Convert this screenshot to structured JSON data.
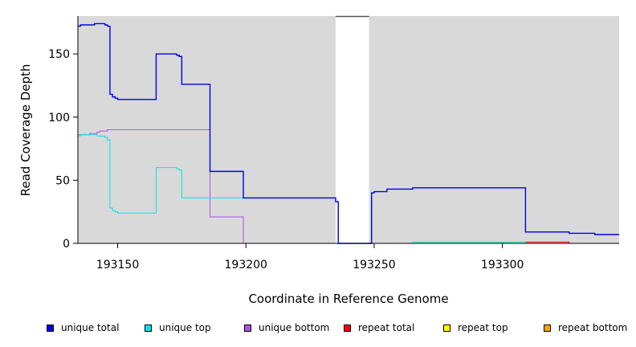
{
  "chart_data": {
    "type": "line",
    "title": "",
    "xlabel": "Coordinate in Reference Genome",
    "ylabel": "Read Coverage Depth",
    "xlim": [
      193134.5,
      193345.5
    ],
    "ylim": [
      0,
      180
    ],
    "x_ticks": [
      193150,
      193200,
      193250,
      193300
    ],
    "x_tick_labels": [
      "193150",
      "193200",
      "193250",
      "193300"
    ],
    "y_ticks": [
      0,
      50,
      100,
      150
    ],
    "y_tick_labels": [
      "0",
      "50",
      "100",
      "150"
    ],
    "grid": false,
    "background": "#d9d9d9",
    "gap_region": [
      193235,
      193248
    ],
    "legend_position": "bottom",
    "series": [
      {
        "name": "unique total",
        "color": "#0000ee",
        "points": [
          [
            193134.5,
            172
          ],
          [
            193135.5,
            173
          ],
          [
            193140,
            173
          ],
          [
            193141,
            174
          ],
          [
            193144,
            174
          ],
          [
            193145,
            173
          ],
          [
            193146,
            172
          ],
          [
            193147,
            118
          ],
          [
            193148,
            116
          ],
          [
            193149,
            115
          ],
          [
            193150,
            114
          ],
          [
            193164,
            114
          ],
          [
            193165,
            150
          ],
          [
            193172,
            150
          ],
          [
            193173,
            149
          ],
          [
            193174,
            148
          ],
          [
            193175,
            126
          ],
          [
            193185,
            126
          ],
          [
            193186,
            57
          ],
          [
            193198,
            57
          ],
          [
            193199,
            36
          ],
          [
            193234,
            36
          ],
          [
            193235,
            33
          ],
          [
            193236,
            0
          ],
          [
            193248,
            0
          ],
          [
            193249,
            40
          ],
          [
            193250,
            41
          ],
          [
            193254,
            41
          ],
          [
            193255,
            43
          ],
          [
            193264,
            43
          ],
          [
            193265,
            44
          ],
          [
            193308,
            44
          ],
          [
            193309,
            9
          ],
          [
            193325,
            9
          ],
          [
            193326,
            8
          ],
          [
            193335,
            8
          ],
          [
            193336,
            7
          ],
          [
            193345.5,
            7
          ]
        ]
      },
      {
        "name": "unique top",
        "color": "#00e5ee",
        "points": [
          [
            193134.5,
            85
          ],
          [
            193135.5,
            86
          ],
          [
            193140,
            86
          ],
          [
            193141,
            86
          ],
          [
            193142,
            85
          ],
          [
            193144,
            85
          ],
          [
            193145,
            84
          ],
          [
            193146,
            82
          ],
          [
            193147,
            28
          ],
          [
            193148,
            26
          ],
          [
            193149,
            25
          ],
          [
            193150,
            24
          ],
          [
            193164,
            24
          ],
          [
            193165,
            60
          ],
          [
            193172,
            60
          ],
          [
            193173,
            59
          ],
          [
            193174,
            58
          ],
          [
            193175,
            36
          ],
          [
            193234,
            36
          ],
          [
            193235,
            33
          ],
          [
            193236,
            0
          ],
          [
            193248,
            0
          ],
          [
            193249,
            0
          ],
          [
            193264,
            0
          ],
          [
            193265,
            1
          ],
          [
            193308,
            1
          ],
          [
            193309,
            0
          ],
          [
            193345.5,
            0
          ]
        ]
      },
      {
        "name": "unique bottom",
        "color": "#b04ee8",
        "points": [
          [
            193134.5,
            86
          ],
          [
            193135.5,
            86
          ],
          [
            193138,
            86
          ],
          [
            193139,
            87
          ],
          [
            193141,
            87
          ],
          [
            193142,
            88
          ],
          [
            193143,
            89
          ],
          [
            193145,
            89
          ],
          [
            193146,
            90
          ],
          [
            193185,
            90
          ],
          [
            193186,
            21
          ],
          [
            193198,
            21
          ],
          [
            193199,
            0
          ],
          [
            193345.5,
            0
          ]
        ]
      },
      {
        "name": "repeat total",
        "color": "#ff0000",
        "points": [
          [
            193134.5,
            0
          ],
          [
            193308,
            0
          ],
          [
            193309,
            1
          ],
          [
            193325,
            1
          ],
          [
            193326,
            0
          ],
          [
            193345.5,
            0
          ]
        ]
      },
      {
        "name": "repeat top",
        "color": "#ffff00",
        "points": [
          [
            193134.5,
            0
          ],
          [
            193264,
            0
          ],
          [
            193265,
            1
          ],
          [
            193308,
            1
          ],
          [
            193309,
            0
          ],
          [
            193345.5,
            0
          ]
        ]
      },
      {
        "name": "repeat bottom",
        "color": "#ffa500",
        "points": [
          [
            193134.5,
            0
          ],
          [
            193308,
            0
          ],
          [
            193309,
            1
          ],
          [
            193325,
            1
          ],
          [
            193326,
            0
          ],
          [
            193345.5,
            0
          ]
        ]
      }
    ]
  }
}
